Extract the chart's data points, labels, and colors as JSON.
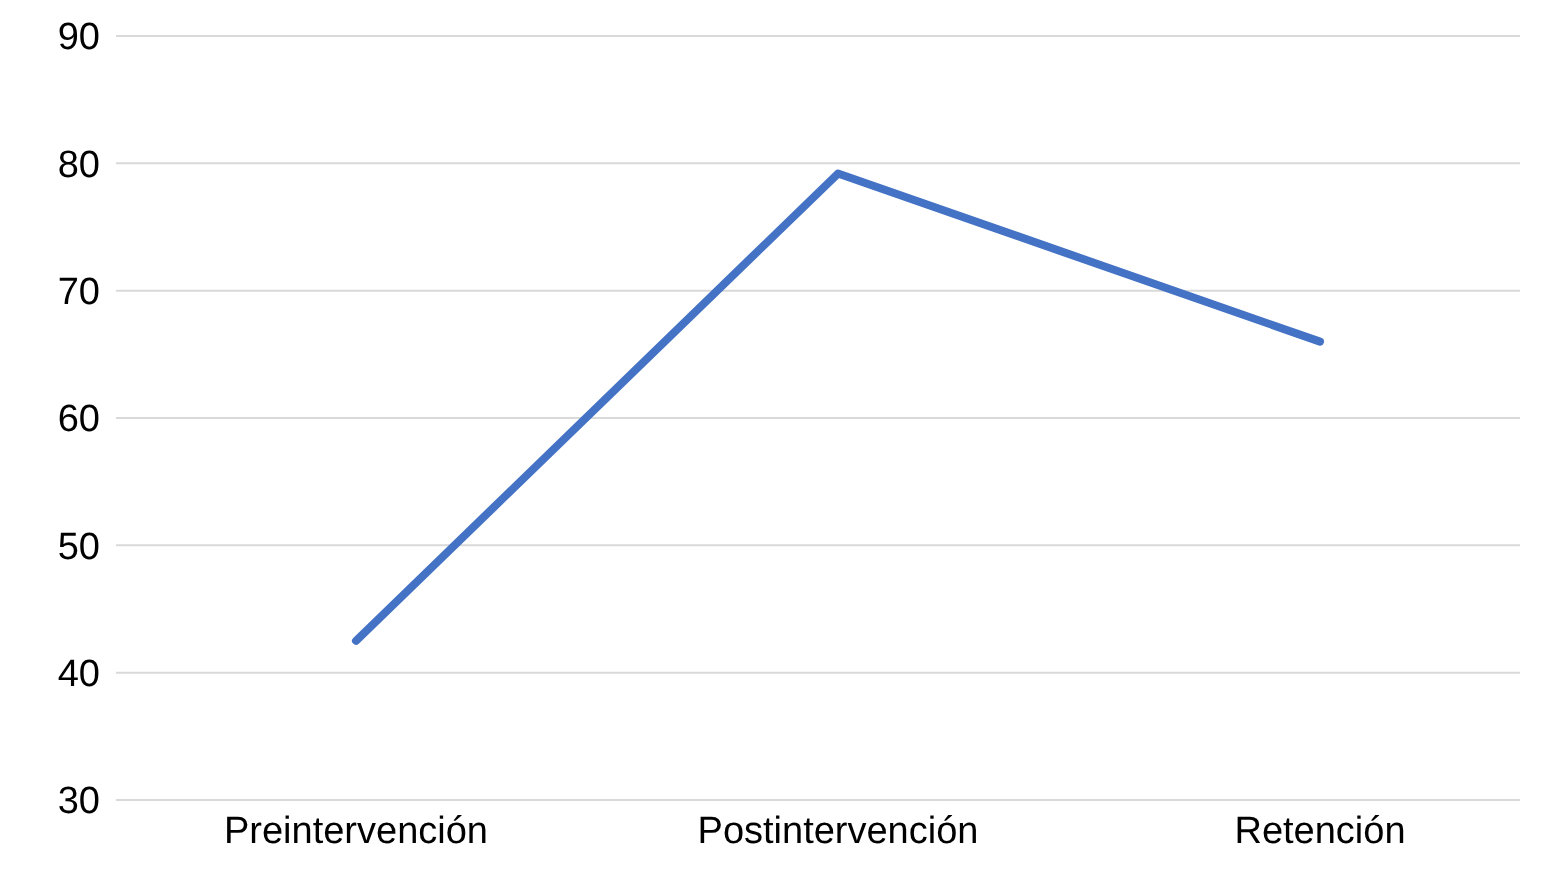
{
  "chart_data": {
    "type": "line",
    "categories": [
      "Preintervención",
      "Postintervención",
      "Retención"
    ],
    "series": [
      {
        "color": "#4472c4",
        "values": [
          42.5,
          79.2,
          66
        ]
      }
    ],
    "ylim": [
      30,
      90
    ],
    "yticks": [
      30,
      40,
      50,
      60,
      70,
      80,
      90
    ],
    "grid": "y",
    "legend": false,
    "marker": "none",
    "line_style": "solid"
  }
}
